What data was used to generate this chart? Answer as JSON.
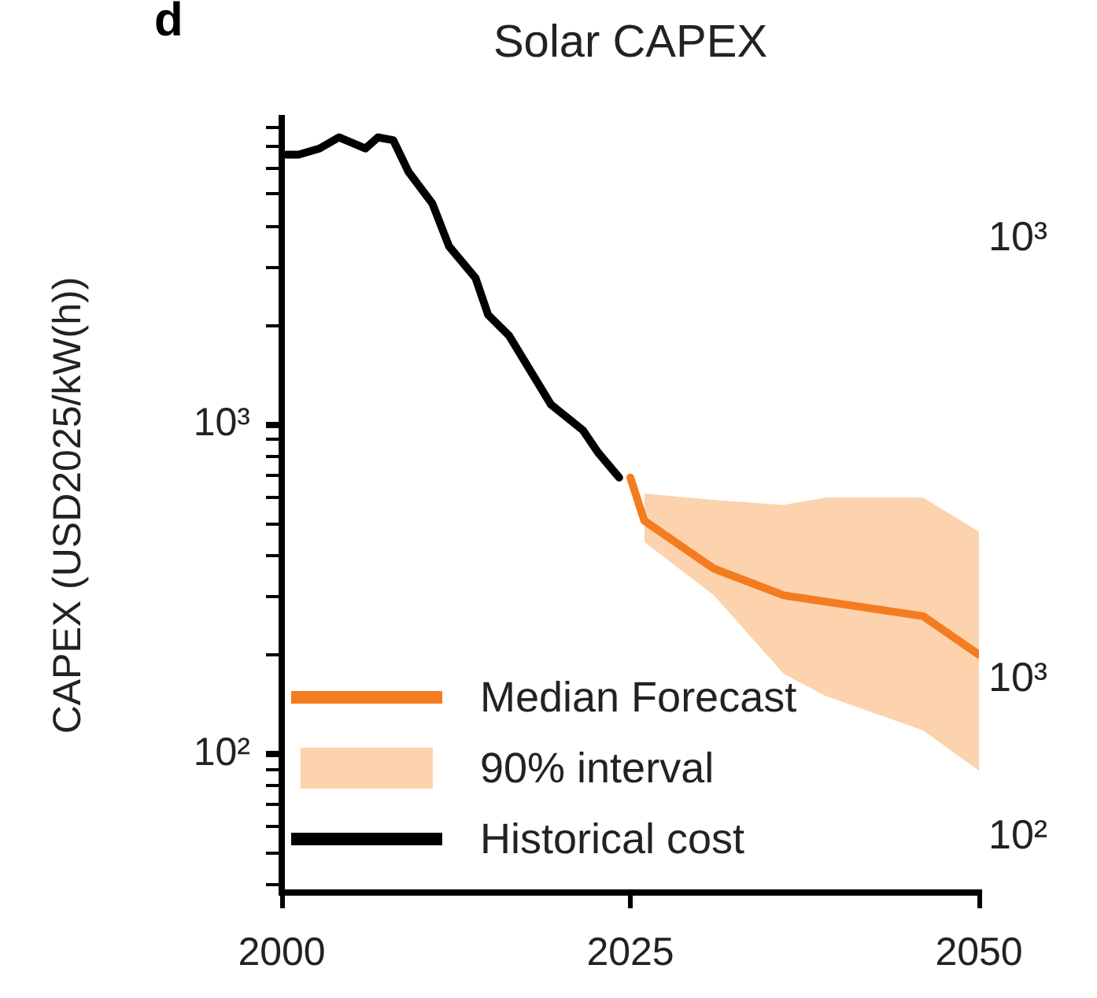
{
  "chart_data": {
    "type": "line",
    "title": "Solar CAPEX",
    "ylabel": "CAPEX (USD2025/kW(h))",
    "log": true,
    "grid": false,
    "legend": "bottom left",
    "marker": "none",
    "line_style": "solid",
    "xlim": [
      2000,
      2050
    ],
    "xticks": [
      2000,
      2025,
      2050
    ],
    "ylim": [
      38,
      8500
    ],
    "yticks": [
      {
        "value": 40,
        "label": null
      },
      {
        "value": 50,
        "label": null
      },
      {
        "value": 60,
        "label": null
      },
      {
        "value": 70,
        "label": null
      },
      {
        "value": 80,
        "label": null
      },
      {
        "value": 90,
        "label": null
      },
      {
        "value": 100,
        "label": "10²"
      },
      {
        "value": 200,
        "label": null
      },
      {
        "value": 300,
        "label": null
      },
      {
        "value": 400,
        "label": null
      },
      {
        "value": 500,
        "label": null
      },
      {
        "value": 600,
        "label": null
      },
      {
        "value": 700,
        "label": null
      },
      {
        "value": 800,
        "label": null
      },
      {
        "value": 900,
        "label": null
      },
      {
        "value": 1000,
        "label": "10³"
      },
      {
        "value": 2000,
        "label": null
      },
      {
        "value": 3000,
        "label": null
      },
      {
        "value": 4000,
        "label": null
      },
      {
        "value": 5000,
        "label": null
      },
      {
        "value": 6000,
        "label": null
      },
      {
        "value": 7000,
        "label": null
      },
      {
        "value": 8000,
        "label": null
      }
    ],
    "series": [
      {
        "name": "Historical cost",
        "color": "#000000",
        "x": [
          2000.3,
          2001.2,
          2002.7,
          2004.1,
          2006.0,
          2006.9,
          2008.0,
          2009.1,
          2010.8,
          2012.0,
          2013.9,
          2014.8,
          2016.3,
          2019.3,
          2021.6,
          2022.7,
          2024.2
        ],
        "values": [
          6580,
          6580,
          6870,
          7430,
          6870,
          7430,
          7280,
          5830,
          4680,
          3470,
          2780,
          2150,
          1860,
          1150,
          960,
          820,
          690
        ]
      },
      {
        "name": "Median Forecast",
        "color": "#f47c20",
        "x": [
          2025,
          2026,
          2031,
          2036,
          2039,
          2046,
          2050
        ],
        "values": [
          690,
          510,
          365,
          303,
          290,
          262,
          200
        ],
        "lower": [
          null,
          440,
          303,
          175,
          150,
          118,
          89
        ],
        "upper": [
          null,
          617,
          590,
          570,
          600,
          600,
          473
        ]
      }
    ],
    "annotations": [
      "d",
      "90% interval",
      "10³",
      "10³",
      "10²"
    ]
  }
}
